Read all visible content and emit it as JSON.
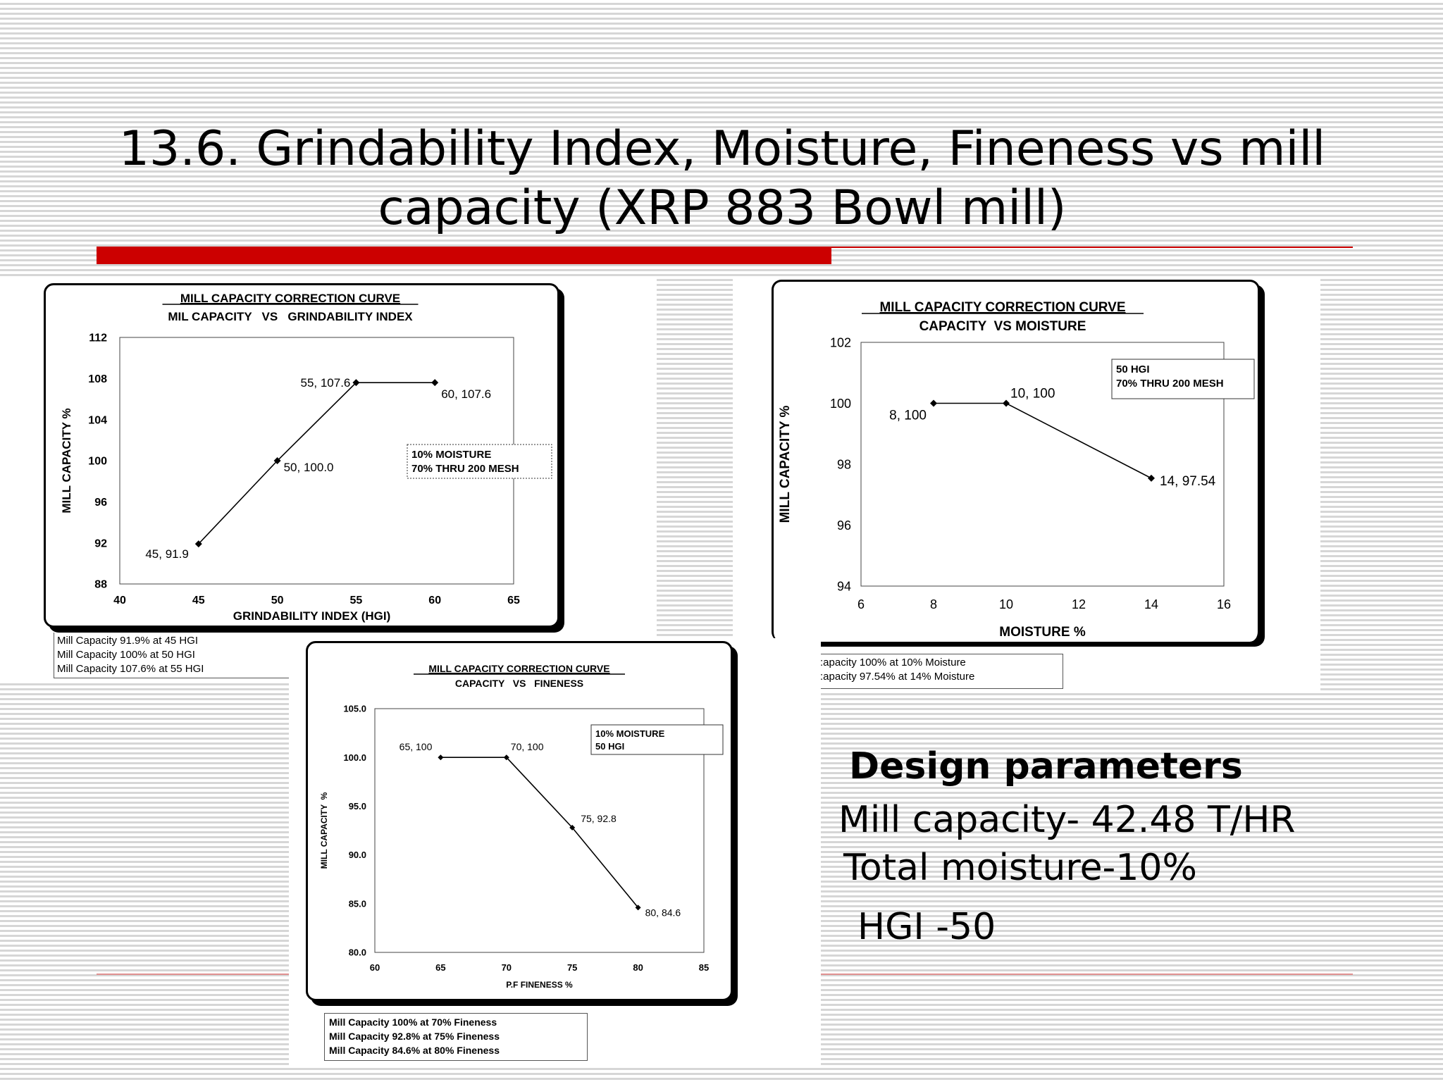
{
  "slide": {
    "title": "13.6. Grindability Index, Moisture, Fineness vs mill capacity (XRP 883 Bowl mill)",
    "accent_color": "#cc0000"
  },
  "design": {
    "heading": "Design parameters",
    "mill_capacity": "Mill capacity- 42.48 T/HR",
    "total_moisture": "Total moisture-10%",
    "hgi": "HGI -50"
  },
  "chart_data": [
    {
      "type": "line",
      "title": "MILL CAPACITY CORRECTION CURVE",
      "subtitle": "MIL CAPACITY   VS   GRINDABILITY INDEX",
      "xlabel": "GRINDABILITY INDEX (HGI)",
      "ylabel": "MILL CAPACITY %",
      "xlim": [
        40,
        65
      ],
      "ylim": [
        88,
        112
      ],
      "xticks": [
        40,
        45,
        50,
        55,
        60,
        65
      ],
      "yticks": [
        88,
        92,
        96,
        100,
        104,
        108,
        112
      ],
      "x": [
        45,
        50,
        55,
        60
      ],
      "y": [
        91.9,
        100.0,
        107.6,
        107.6
      ],
      "point_labels": [
        "45, 91.9",
        "50, 100.0",
        "55, 107.6",
        "60, 107.6"
      ],
      "conditions": [
        "10% MOISTURE",
        "70% THRU 200 MESH"
      ],
      "notes": [
        "Mill Capacity 91.9% at 45 HGI",
        "Mill Capacity 100% at 50 HGI",
        "Mill Capacity 107.6% at 55 HGI"
      ],
      "grid": false
    },
    {
      "type": "line",
      "title": "MILL CAPACITY CORRECTION CURVE",
      "subtitle": "CAPACITY  VS MOISTURE",
      "xlabel": "MOISTURE %",
      "ylabel": "MILL CAPACITY %",
      "xlim": [
        6,
        16
      ],
      "ylim": [
        94,
        102
      ],
      "xticks": [
        6,
        8,
        10,
        12,
        14,
        16
      ],
      "yticks": [
        94,
        96,
        98,
        100,
        102
      ],
      "x": [
        8,
        10,
        14
      ],
      "y": [
        100,
        100,
        97.54
      ],
      "point_labels": [
        "8, 100",
        "10, 100",
        "14, 97.54"
      ],
      "conditions": [
        "50 HGI",
        "70% THRU 200 MESH"
      ],
      "notes": [
        ":apacity 100% at 10% Moisture",
        ":apacity 97.54% at 14% Moisture"
      ],
      "grid": false
    },
    {
      "type": "line",
      "title": "MILL CAPACITY CORRECTION CURVE",
      "subtitle": "CAPACITY   VS   FINENESS",
      "xlabel": "P.F FINENESS %",
      "ylabel": "MILL CAPACITY  %",
      "xlim": [
        60,
        85
      ],
      "ylim": [
        80.0,
        105.0
      ],
      "xticks": [
        "60",
        "65",
        "70",
        "75",
        "80",
        "85"
      ],
      "yticks": [
        "80.0",
        "85.0",
        "90.0",
        "95.0",
        "100.0",
        "105.0"
      ],
      "x": [
        65,
        70,
        75,
        80
      ],
      "y": [
        100,
        100,
        92.8,
        84.6
      ],
      "point_labels": [
        "65, 100",
        "70, 100",
        "75, 92.8",
        "80, 84.6"
      ],
      "conditions": [
        "10% MOISTURE",
        "50 HGI"
      ],
      "notes": [
        "Mill Capacity 100% at 70% Fineness",
        "Mill Capacity 92.8% at 75% Fineness",
        "Mill Capacity 84.6% at 80% Fineness"
      ],
      "grid": false
    }
  ]
}
